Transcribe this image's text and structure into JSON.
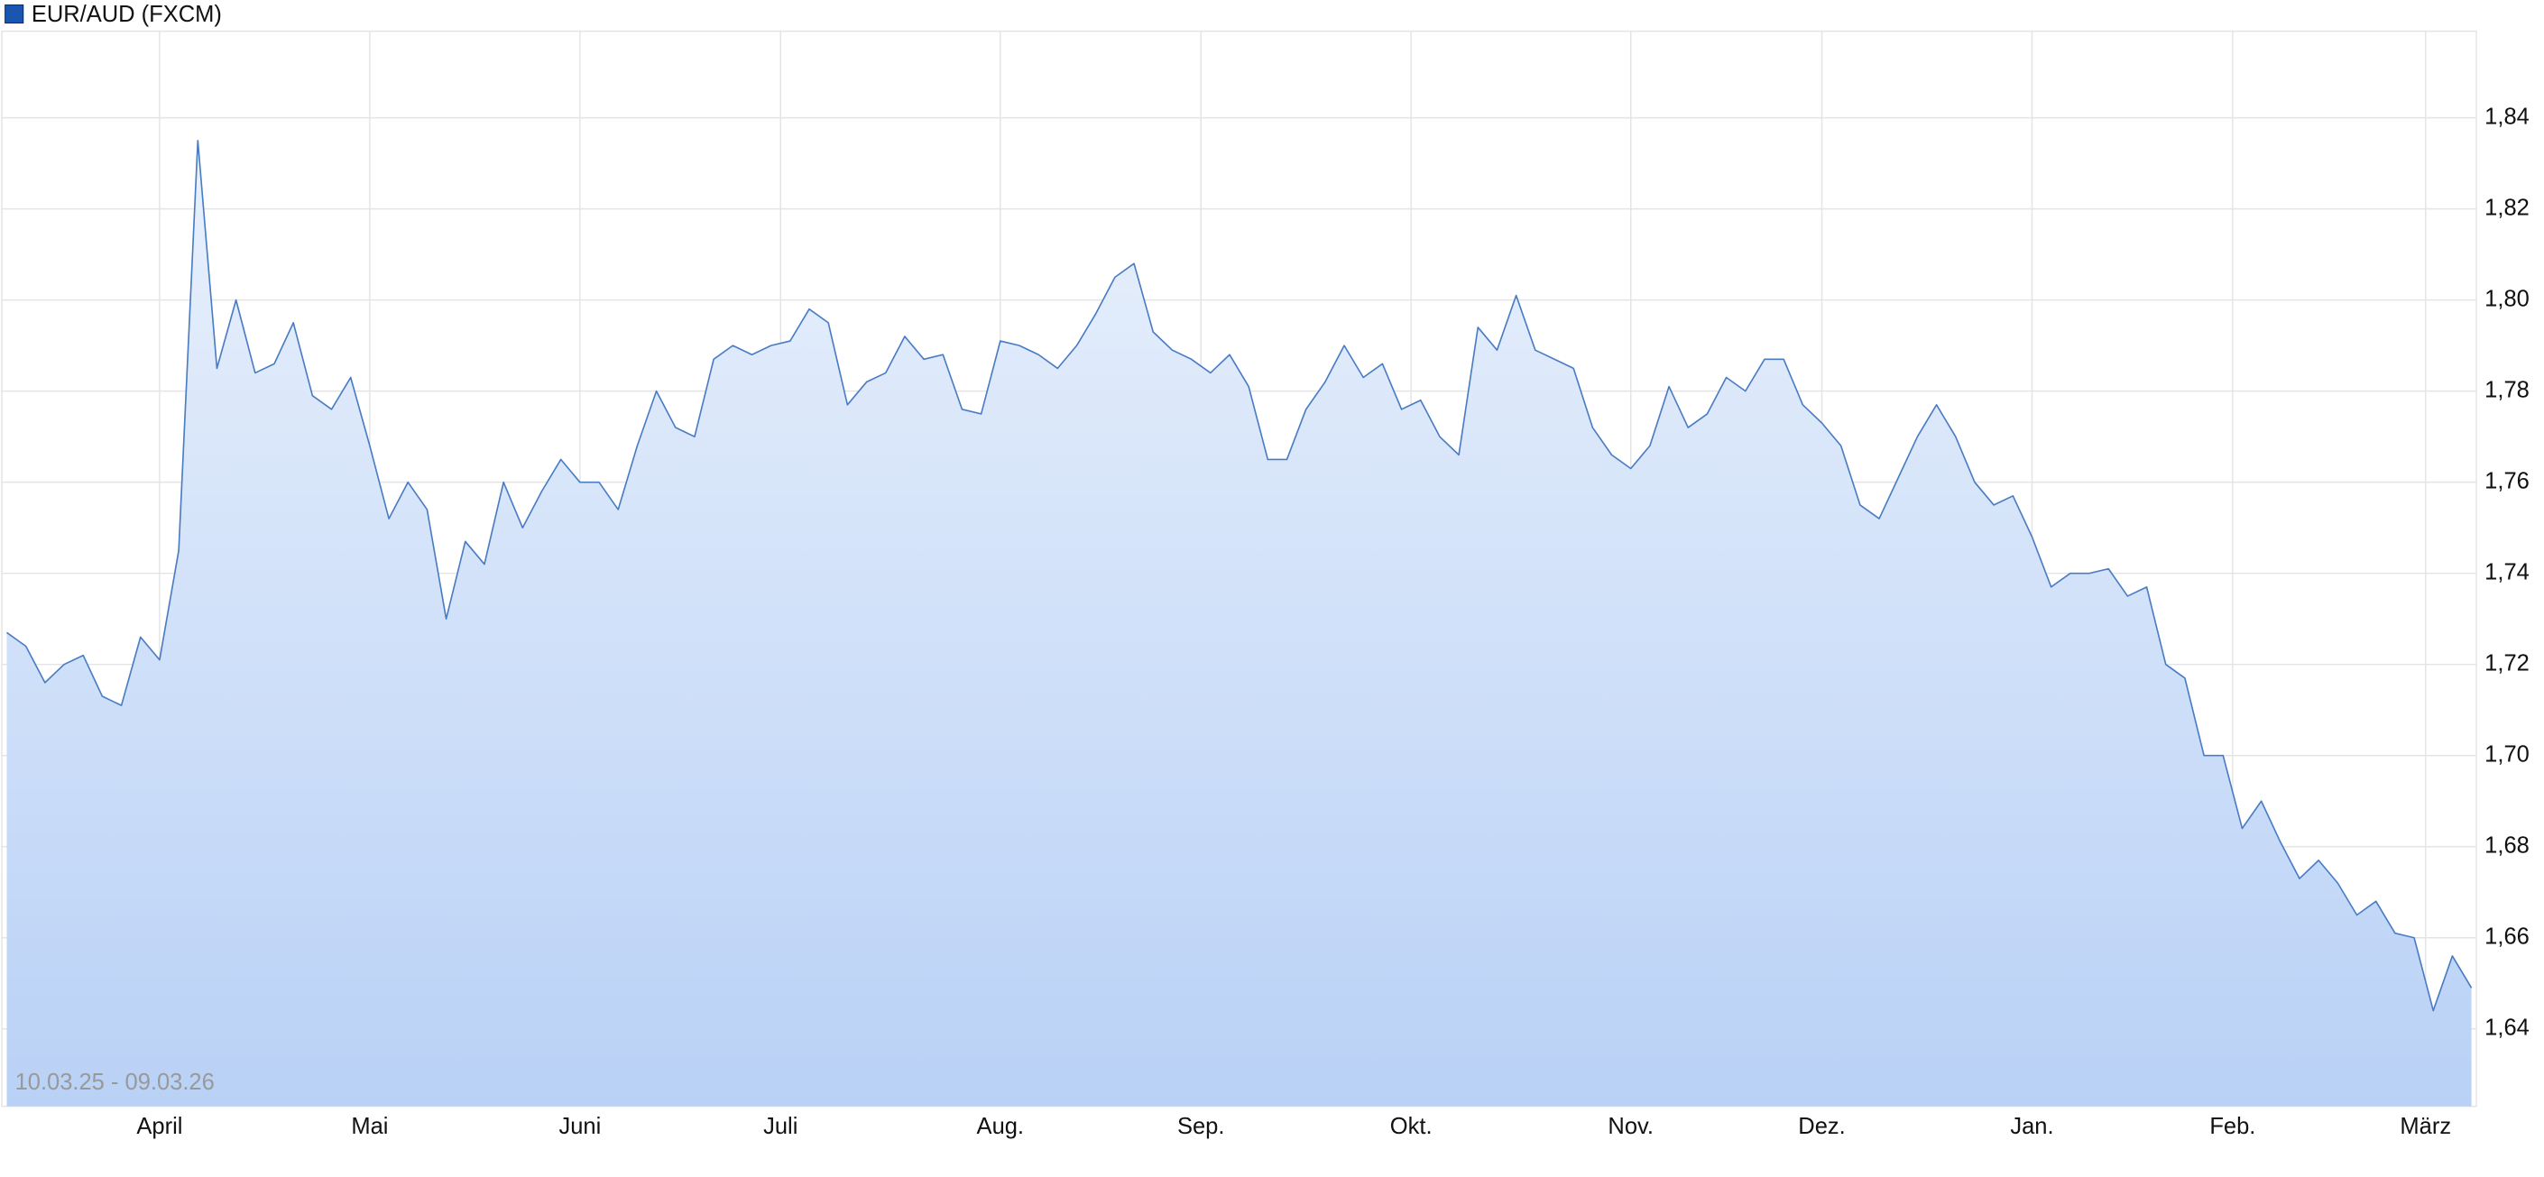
{
  "chart_data": {
    "type": "line",
    "annotation": "10.03.25 - 09.03.26",
    "series": [
      {
        "name": "EUR/AUD (FXCM)",
        "color": "#4a7cc4",
        "values": [
          1.727,
          1.724,
          1.716,
          1.72,
          1.722,
          1.713,
          1.711,
          1.726,
          1.721,
          1.745,
          1.835,
          1.785,
          1.8,
          1.784,
          1.786,
          1.795,
          1.779,
          1.776,
          1.783,
          1.768,
          1.752,
          1.76,
          1.754,
          1.73,
          1.747,
          1.742,
          1.76,
          1.75,
          1.758,
          1.765,
          1.76,
          1.76,
          1.754,
          1.768,
          1.78,
          1.772,
          1.77,
          1.787,
          1.79,
          1.788,
          1.79,
          1.791,
          1.798,
          1.795,
          1.777,
          1.782,
          1.784,
          1.792,
          1.787,
          1.788,
          1.776,
          1.775,
          1.791,
          1.79,
          1.788,
          1.785,
          1.79,
          1.797,
          1.805,
          1.808,
          1.793,
          1.789,
          1.787,
          1.784,
          1.788,
          1.781,
          1.765,
          1.765,
          1.776,
          1.782,
          1.79,
          1.783,
          1.786,
          1.776,
          1.778,
          1.77,
          1.766,
          1.794,
          1.789,
          1.801,
          1.789,
          1.787,
          1.785,
          1.772,
          1.766,
          1.763,
          1.768,
          1.781,
          1.772,
          1.775,
          1.783,
          1.78,
          1.787,
          1.787,
          1.777,
          1.773,
          1.768,
          1.755,
          1.752,
          1.761,
          1.77,
          1.777,
          1.77,
          1.76,
          1.755,
          1.757,
          1.748,
          1.737,
          1.74,
          1.74,
          1.741,
          1.735,
          1.737,
          1.72,
          1.717,
          1.7,
          1.7,
          1.684,
          1.69,
          1.681,
          1.673,
          1.677,
          1.672,
          1.665,
          1.668,
          1.661,
          1.66,
          1.644,
          1.656,
          1.649
        ]
      }
    ],
    "legend_color": "#1a56b0",
    "area_fill": [
      "#e9f1fc",
      "#b9d1f6"
    ],
    "xlim": [
      0,
      129
    ],
    "xticks": [
      {
        "value": 8.0,
        "label": "April"
      },
      {
        "value": 19.0,
        "label": "Mai"
      },
      {
        "value": 30.0,
        "label": "Juni"
      },
      {
        "value": 40.5,
        "label": "Juli"
      },
      {
        "value": 52.0,
        "label": "Aug."
      },
      {
        "value": 62.5,
        "label": "Sep."
      },
      {
        "value": 73.5,
        "label": "Okt."
      },
      {
        "value": 85.0,
        "label": "Nov."
      },
      {
        "value": 95.0,
        "label": "Dez."
      },
      {
        "value": 106.0,
        "label": "Jan."
      },
      {
        "value": 116.5,
        "label": "Feb."
      },
      {
        "value": 126.6,
        "label": "März"
      }
    ],
    "ylim": [
      1.623,
      1.859
    ],
    "yticks": [
      {
        "value": 1.64,
        "label": "1,64"
      },
      {
        "value": 1.66,
        "label": "1,66"
      },
      {
        "value": 1.68,
        "label": "1,68"
      },
      {
        "value": 1.7,
        "label": "1,70"
      },
      {
        "value": 1.72,
        "label": "1,72"
      },
      {
        "value": 1.74,
        "label": "1,74"
      },
      {
        "value": 1.76,
        "label": "1,76"
      },
      {
        "value": 1.78,
        "label": "1,78"
      },
      {
        "value": 1.8,
        "label": "1,80"
      },
      {
        "value": 1.82,
        "label": "1,82"
      },
      {
        "value": 1.84,
        "label": "1,84"
      }
    ],
    "grid": true
  }
}
